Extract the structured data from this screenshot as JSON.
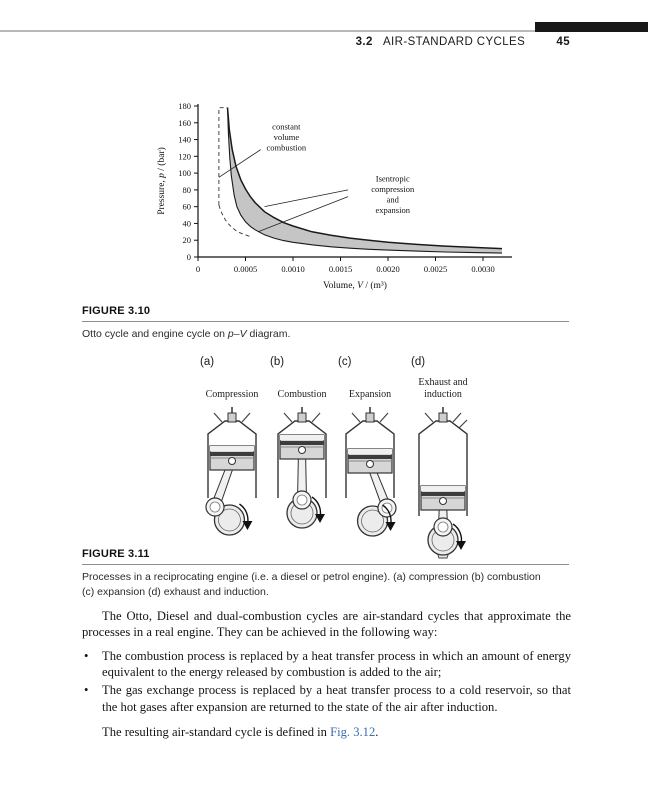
{
  "colors": {
    "accent_link": "#3a6cae",
    "shaded_loop": "#c5c5c5",
    "header_bar": "#181818",
    "rule_gray": "#8f8f8f"
  },
  "header": {
    "section_number": "3.2",
    "section_title": "AIR-STANDARD CYCLES",
    "page_number": "45"
  },
  "chart_data": {
    "type": "area",
    "title": "",
    "xlabel_prefix": "Volume, ",
    "xlabel_var": "V",
    "xlabel_suffix": " / (m³)",
    "ylabel_prefix": "Pressure, ",
    "ylabel_var": "p",
    "ylabel_suffix": " / (bar)",
    "xlim": [
      0,
      0.0033
    ],
    "ylim": [
      0,
      180
    ],
    "x_ticks": [
      0,
      0.0005,
      0.001,
      0.0015,
      0.002,
      0.0025,
      0.003
    ],
    "x_tick_labels": [
      "0",
      "0.0005",
      "0.0010",
      "0.0015",
      "0.0020",
      "0.0025",
      "0.0030"
    ],
    "y_ticks": [
      0,
      20,
      40,
      60,
      80,
      100,
      120,
      140,
      160,
      180
    ],
    "grid": false,
    "legend": "none",
    "series": [
      {
        "name": "engine-cycle-expansion-upper-bound",
        "style": "solid",
        "points": [
          [
            0.00031,
            178
          ],
          [
            0.00033,
            152
          ],
          [
            0.00036,
            128
          ],
          [
            0.0004,
            108
          ],
          [
            0.00045,
            92
          ],
          [
            0.0005,
            81
          ],
          [
            0.00055,
            72
          ],
          [
            0.0006,
            65
          ],
          [
            0.0007,
            54
          ],
          [
            0.0008,
            47
          ],
          [
            0.0009,
            41
          ],
          [
            0.001,
            37
          ],
          [
            0.0012,
            30
          ],
          [
            0.0014,
            26
          ],
          [
            0.0016,
            22.5
          ],
          [
            0.0018,
            20
          ],
          [
            0.002,
            17.5
          ],
          [
            0.0023,
            15
          ],
          [
            0.0026,
            13
          ],
          [
            0.0029,
            11.5
          ],
          [
            0.0032,
            10
          ]
        ]
      },
      {
        "name": "engine-cycle-compression-lower-bound",
        "style": "solid",
        "points": [
          [
            0.00031,
            178
          ],
          [
            0.00032,
            148
          ],
          [
            0.000335,
            118
          ],
          [
            0.00035,
            97
          ],
          [
            0.00038,
            74
          ],
          [
            0.00041,
            60
          ],
          [
            0.00045,
            50
          ],
          [
            0.0005,
            42
          ],
          [
            0.00055,
            36.5
          ],
          [
            0.0006,
            32.5
          ],
          [
            0.0007,
            26.5
          ],
          [
            0.0008,
            22.5
          ],
          [
            0.0009,
            19.5
          ],
          [
            0.001,
            17.5
          ],
          [
            0.0012,
            14.5
          ],
          [
            0.0014,
            12.2
          ],
          [
            0.0016,
            10.5
          ],
          [
            0.0018,
            9.2
          ],
          [
            0.002,
            8.2
          ],
          [
            0.0023,
            7
          ],
          [
            0.0026,
            6
          ],
          [
            0.0029,
            5.2
          ],
          [
            0.0032,
            4.6
          ]
        ]
      },
      {
        "name": "otto-cycle-constant-volume-combustion",
        "style": "dashed",
        "points": [
          [
            0.00022,
            62
          ],
          [
            0.00022,
            178
          ],
          [
            0.00031,
            178
          ]
        ]
      },
      {
        "name": "otto-cycle-isentropic-compression",
        "style": "dashed",
        "points": [
          [
            0.00022,
            62
          ],
          [
            0.00024,
            55
          ],
          [
            0.00026,
            50
          ],
          [
            0.00029,
            44
          ],
          [
            0.00032,
            39.5
          ],
          [
            0.00036,
            35
          ],
          [
            0.0004,
            31.5
          ],
          [
            0.00044,
            29
          ],
          [
            0.00048,
            27
          ],
          [
            0.00052,
            25.5
          ],
          [
            0.00056,
            24.2
          ]
        ]
      }
    ],
    "annotations": [
      {
        "text_lines": [
          "constant",
          "volume",
          "combustion"
        ],
        "x": 0.00093,
        "y": 152,
        "leaders": [
          [
            [
              0.00066,
              128
            ],
            [
              0.00022,
              95
            ]
          ]
        ]
      },
      {
        "text_lines": [
          "Isentropic",
          "compression",
          "and",
          "expansion"
        ],
        "x": 0.00205,
        "y": 90,
        "leaders": [
          [
            [
              0.00158,
              80
            ],
            [
              0.0007,
              60
            ]
          ],
          [
            [
              0.00158,
              72
            ],
            [
              0.00063,
              30
            ]
          ]
        ]
      }
    ],
    "fill_color": "#c5c5c5"
  },
  "figure_3_10": {
    "label": "FIGURE 3.10",
    "caption_prefix": "Otto cycle and engine cycle on ",
    "caption_italic": "p–V",
    "caption_suffix": " diagram."
  },
  "figure_3_11": {
    "label": "FIGURE 3.11",
    "caption_line1": "Processes in a reciprocating engine (i.e. a diesel or petrol engine). (a) compression (b) combustion",
    "caption_line2": "(c) expansion (d) exhaust and induction.",
    "panels": [
      {
        "letter": "(a)",
        "name": "Compression"
      },
      {
        "letter": "(b)",
        "name": "Combustion"
      },
      {
        "letter": "(c)",
        "name": "Expansion"
      },
      {
        "letter": "(d)",
        "name": "Exhaust and induction"
      }
    ]
  },
  "body": {
    "paragraph1": "The Otto, Diesel and dual-combustion cycles are air-standard cycles that approximate the processes in a real engine. They can be achieved in the following way:",
    "bullet_glyph": "•",
    "bullets": [
      "The combustion process is replaced by a heat transfer process in which an amount of energy equivalent to the energy released by combustion is added to the air;",
      "The gas exchange process is replaced by a heat transfer process to a cold reservoir, so that the hot gases after expansion are returned to the state of the air after induction."
    ],
    "closing_prefix": "The resulting air-standard cycle is defined in ",
    "closing_link": "Fig. 3.12",
    "closing_suffix": "."
  }
}
